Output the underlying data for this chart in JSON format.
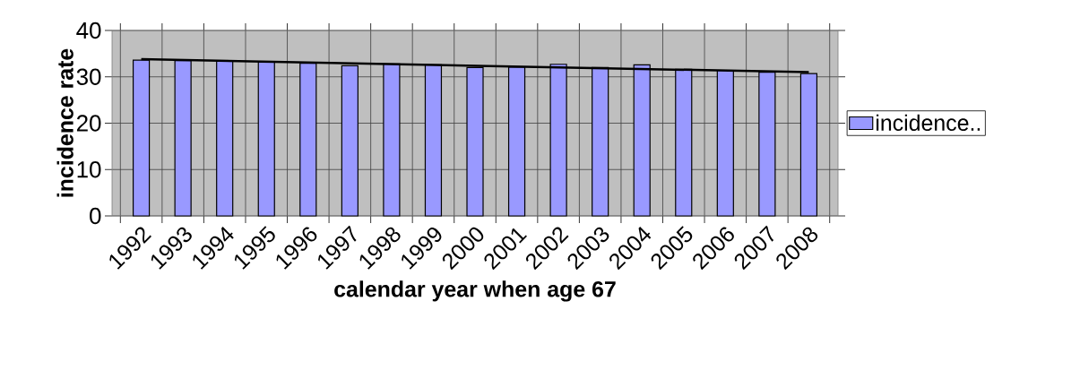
{
  "chart_data": {
    "type": "bar",
    "xlabel": "calendar year when age 67",
    "ylabel": "incidence rate",
    "categories": [
      "1992",
      "1993",
      "1994",
      "1995",
      "1996",
      "1997",
      "1998",
      "1999",
      "2000",
      "2001",
      "2002",
      "2003",
      "2004",
      "2005",
      "2006",
      "2007",
      "2008"
    ],
    "series": [
      {
        "name": "incidence..",
        "color": "#9999ff",
        "values": [
          33.6,
          33.5,
          33.4,
          33.2,
          32.9,
          32.4,
          32.8,
          32.6,
          32.0,
          32.1,
          32.7,
          32.0,
          32.6,
          31.6,
          31.4,
          31.0,
          30.7
        ]
      },
      {
        "type": "line",
        "color": "#000000",
        "values": [
          33.8,
          null,
          null,
          null,
          null,
          null,
          null,
          null,
          null,
          null,
          null,
          null,
          null,
          null,
          null,
          null,
          31.0
        ]
      }
    ],
    "ylim": [
      0,
      40
    ],
    "yticks": [
      0,
      10,
      20,
      30,
      40
    ],
    "grid": true,
    "legend": "right"
  }
}
